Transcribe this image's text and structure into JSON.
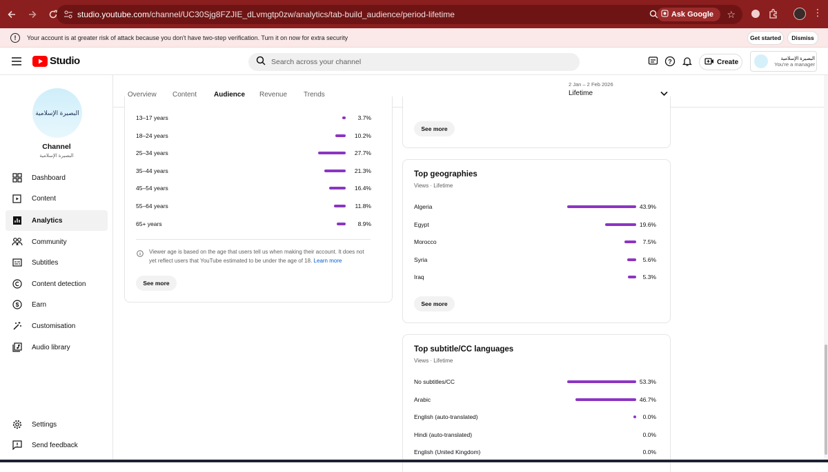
{
  "browser": {
    "url_prefix": "studio.youtube.com",
    "url_path": "/channel/UC30Sjg8FZJIE_dLvmgtp0zw/analytics/tab-build_audience/period-lifetime",
    "ask_google": "Ask Google"
  },
  "banner": {
    "message": "Your account is at greater risk of attack because you don't have two-step verification. Turn it on now for extra security",
    "get_started": "Get started",
    "dismiss": "Dismiss"
  },
  "header": {
    "logo_text": "Studio",
    "search_placeholder": "Search across your channel",
    "create_label": "Create",
    "account_name": "البصيرة الإسلامية",
    "account_role": "You're a manager"
  },
  "sidebar": {
    "avatar_text": "البصيرة الإسلامية",
    "channel_title": "Channel",
    "channel_subtitle": "البصيرة الإسلامية",
    "items": [
      {
        "label": "Dashboard",
        "icon": "dashboard-icon"
      },
      {
        "label": "Content",
        "icon": "content-icon"
      },
      {
        "label": "Analytics",
        "icon": "analytics-icon"
      },
      {
        "label": "Community",
        "icon": "community-icon"
      },
      {
        "label": "Subtitles",
        "icon": "subtitles-icon"
      },
      {
        "label": "Content detection",
        "icon": "copyright-icon"
      },
      {
        "label": "Earn",
        "icon": "earn-icon"
      },
      {
        "label": "Customisation",
        "icon": "customisation-icon"
      },
      {
        "label": "Audio library",
        "icon": "audio-library-icon"
      }
    ],
    "settings": "Settings",
    "feedback": "Send feedback"
  },
  "tabs": [
    "Overview",
    "Content",
    "Audience",
    "Revenue",
    "Trends"
  ],
  "period": {
    "range": "2 Jan – 2 Feb 2026",
    "label": "Lifetime"
  },
  "age_card": {
    "rows": [
      {
        "label": "13–17 years",
        "pct": "3.7%",
        "value": 3.7
      },
      {
        "label": "18–24 years",
        "pct": "10.2%",
        "value": 10.2
      },
      {
        "label": "25–34 years",
        "pct": "27.7%",
        "value": 27.7
      },
      {
        "label": "35–44 years",
        "pct": "21.3%",
        "value": 21.3
      },
      {
        "label": "45–54 years",
        "pct": "16.4%",
        "value": 16.4
      },
      {
        "label": "55–64 years",
        "pct": "11.8%",
        "value": 11.8
      },
      {
        "label": "65+ years",
        "pct": "8.9%",
        "value": 8.9
      }
    ],
    "note": "Viewer age is based on the age that users tell us when making their account. It does not yet reflect users that YouTube estimated to be under the age of 18.",
    "learn_more": "Learn more",
    "see_more": "See more"
  },
  "top_card": {
    "see_more": "See more"
  },
  "geo_card": {
    "title": "Top geographies",
    "subtitle": "Views · Lifetime",
    "rows": [
      {
        "label": "Algeria",
        "pct": "43.9%",
        "value": 43.9
      },
      {
        "label": "Egypt",
        "pct": "19.6%",
        "value": 19.6
      },
      {
        "label": "Morocco",
        "pct": "7.5%",
        "value": 7.5
      },
      {
        "label": "Syria",
        "pct": "5.6%",
        "value": 5.6
      },
      {
        "label": "Iraq",
        "pct": "5.3%",
        "value": 5.3
      }
    ],
    "see_more": "See more"
  },
  "subs_card": {
    "title": "Top subtitle/CC languages",
    "subtitle": "Views · Lifetime",
    "rows": [
      {
        "label": "No subtitles/CC",
        "pct": "53.3%",
        "value": 53.3
      },
      {
        "label": "Arabic",
        "pct": "46.7%",
        "value": 46.7
      },
      {
        "label": "English (auto-translated)",
        "pct": "0.0%",
        "value": 0.0
      },
      {
        "label": "Hindi (auto-translated)",
        "pct": "0.0%",
        "value": 0.0
      },
      {
        "label": "English (United Kingdom)",
        "pct": "0.0%",
        "value": 0.0
      }
    ]
  },
  "colors": {
    "bar": "#8b35c2",
    "browser_bar": "#8b1e1e",
    "banner_bg": "#fbe9e9",
    "youtube_red": "#ff0000"
  }
}
